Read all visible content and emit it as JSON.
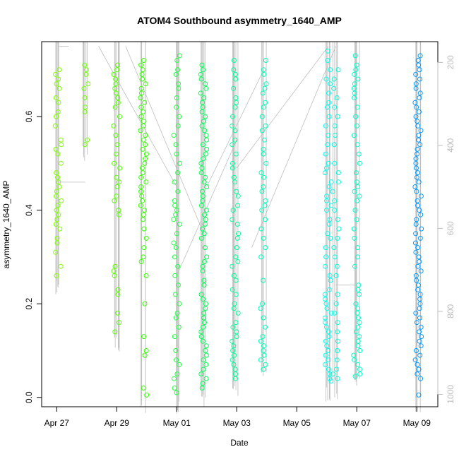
{
  "chart_data": {
    "type": "scatter",
    "title": "ATOM4 Southbound asymmetry_1640_AMP",
    "xlabel": "Date",
    "ylabel": "asymmetry_1640_AMP",
    "x_ticks": [
      "Apr 27",
      "Apr 29",
      "May 01",
      "May 03",
      "May 05",
      "May 07",
      "May 09"
    ],
    "y_ticks": [
      "0.0",
      "0.2",
      "0.4",
      "0.6"
    ],
    "y_ticks_right": [
      "200",
      "400",
      "600",
      "800",
      "1000"
    ],
    "xlim_days": [
      -0.5,
      12.7
    ],
    "ylim": [
      -0.02,
      0.76
    ],
    "ylim_right": [
      1030,
      150
    ],
    "grid": false,
    "right_axis_color": "#bdbdbd",
    "line_color": "#bebebe",
    "series": [
      {
        "day": 0.05,
        "color": "#7fff00",
        "values": [
          0.7,
          0.69,
          0.68,
          0.67,
          0.66,
          0.64,
          0.63,
          0.61,
          0.6,
          0.58,
          0.55,
          0.54,
          0.53,
          0.52,
          0.5,
          0.48,
          0.47,
          0.46,
          0.45,
          0.44,
          0.43,
          0.42,
          0.41,
          0.4,
          0.39,
          0.38,
          0.37,
          0.36,
          0.34,
          0.33,
          0.31,
          0.28,
          0.26
        ]
      },
      {
        "day": 0.95,
        "color": "#6fff00",
        "values": [
          0.71,
          0.7,
          0.69,
          0.67,
          0.66,
          0.64,
          0.62,
          0.61,
          0.55,
          0.54
        ]
      },
      {
        "day": 2.0,
        "color": "#55ff00",
        "values": [
          0.71,
          0.7,
          0.69,
          0.68,
          0.67,
          0.66,
          0.65,
          0.64,
          0.63,
          0.62,
          0.6,
          0.58,
          0.56,
          0.54,
          0.52,
          0.5,
          0.49,
          0.47,
          0.46,
          0.45,
          0.43,
          0.42,
          0.4,
          0.39,
          0.28,
          0.27,
          0.26,
          0.23,
          0.22,
          0.18,
          0.16,
          0.14
        ]
      },
      {
        "day": 2.9,
        "color": "#33ff00",
        "values": [
          0.72,
          0.71,
          0.7,
          0.69,
          0.68,
          0.67,
          0.66,
          0.65,
          0.64,
          0.63,
          0.62,
          0.61,
          0.6,
          0.59,
          0.58,
          0.57,
          0.56,
          0.55,
          0.54,
          0.53,
          0.52,
          0.51,
          0.5,
          0.49,
          0.48,
          0.47,
          0.46,
          0.45,
          0.44,
          0.43,
          0.42,
          0.41,
          0.4,
          0.39,
          0.38,
          0.36,
          0.34,
          0.32,
          0.3,
          0.29,
          0.26,
          0.2,
          0.13,
          0.1,
          0.09,
          0.02,
          0.005
        ]
      },
      {
        "day": 4.0,
        "color": "#22ff44",
        "values": [
          0.73,
          0.72,
          0.7,
          0.69,
          0.67,
          0.66,
          0.64,
          0.62,
          0.6,
          0.58,
          0.56,
          0.54,
          0.52,
          0.5,
          0.48,
          0.46,
          0.44,
          0.42,
          0.41,
          0.4,
          0.39,
          0.38,
          0.37,
          0.35,
          0.33,
          0.32,
          0.3,
          0.28,
          0.26,
          0.24,
          0.22,
          0.2,
          0.18,
          0.17,
          0.15,
          0.13,
          0.1,
          0.08,
          0.07,
          0.05,
          0.04,
          0.02,
          0.01
        ]
      },
      {
        "day": 4.9,
        "color": "#00ff55",
        "values": [
          0.71,
          0.7,
          0.69,
          0.68,
          0.67,
          0.66,
          0.65,
          0.64,
          0.63,
          0.62,
          0.61,
          0.6,
          0.59,
          0.58,
          0.57,
          0.56,
          0.55,
          0.54,
          0.53,
          0.52,
          0.51,
          0.5,
          0.49,
          0.48,
          0.47,
          0.46,
          0.45,
          0.44,
          0.43,
          0.42,
          0.41,
          0.4,
          0.39,
          0.38,
          0.37,
          0.36,
          0.35,
          0.34,
          0.32,
          0.3,
          0.29,
          0.28,
          0.27,
          0.25,
          0.24,
          0.22,
          0.21,
          0.2,
          0.19,
          0.18,
          0.17,
          0.16,
          0.15,
          0.14,
          0.13,
          0.12,
          0.11,
          0.1,
          0.09,
          0.08,
          0.07,
          0.06,
          0.05,
          0.04,
          0.03,
          0.02
        ]
      },
      {
        "day": 5.95,
        "color": "#00ff99",
        "values": [
          0.72,
          0.7,
          0.69,
          0.68,
          0.66,
          0.64,
          0.63,
          0.62,
          0.6,
          0.58,
          0.57,
          0.55,
          0.54,
          0.52,
          0.5,
          0.49,
          0.47,
          0.46,
          0.44,
          0.43,
          0.41,
          0.4,
          0.38,
          0.37,
          0.35,
          0.34,
          0.32,
          0.3,
          0.29,
          0.28,
          0.26,
          0.25,
          0.23,
          0.22,
          0.2,
          0.19,
          0.18,
          0.16,
          0.15,
          0.14,
          0.13,
          0.12,
          0.11,
          0.1,
          0.09,
          0.08,
          0.07,
          0.06,
          0.05,
          0.04
        ]
      },
      {
        "day": 6.9,
        "color": "#00ffbb",
        "values": [
          0.72,
          0.7,
          0.69,
          0.67,
          0.66,
          0.65,
          0.63,
          0.62,
          0.6,
          0.58,
          0.57,
          0.55,
          0.53,
          0.52,
          0.5,
          0.48,
          0.47,
          0.45,
          0.44,
          0.42,
          0.41,
          0.4,
          0.38,
          0.36,
          0.34,
          0.32,
          0.3,
          0.25,
          0.2,
          0.19,
          0.17,
          0.15,
          0.13,
          0.12,
          0.11,
          0.1,
          0.09,
          0.08,
          0.07,
          0.06
        ]
      },
      {
        "day": 9.05,
        "color": "#00ffee",
        "values": [
          0.74,
          0.72,
          0.7,
          0.68,
          0.67,
          0.65,
          0.63,
          0.62,
          0.6,
          0.58,
          0.56,
          0.54,
          0.52,
          0.5,
          0.49,
          0.48,
          0.46,
          0.45,
          0.43,
          0.42,
          0.41,
          0.4,
          0.38,
          0.37,
          0.35,
          0.34,
          0.32,
          0.3,
          0.28,
          0.26,
          0.25,
          0.23,
          0.22,
          0.21,
          0.2,
          0.19,
          0.18,
          0.17,
          0.16,
          0.15,
          0.14,
          0.13,
          0.12,
          0.11,
          0.1,
          0.09,
          0.08,
          0.07,
          0.06,
          0.05,
          0.04,
          0.035
        ]
      },
      {
        "day": 9.3,
        "color": "#00ffdd",
        "values": [
          0.7,
          0.68,
          0.66,
          0.64,
          0.62,
          0.6,
          0.58,
          0.56,
          0.54,
          0.5,
          0.48,
          0.46,
          0.44,
          0.42,
          0.4,
          0.38,
          0.36,
          0.34,
          0.32,
          0.3,
          0.28,
          0.26,
          0.22,
          0.2,
          0.18,
          0.16,
          0.14,
          0.12,
          0.1,
          0.08,
          0.06,
          0.05,
          0.04
        ]
      },
      {
        "day": 10.0,
        "color": "#00ffcc",
        "values": [
          0.73,
          0.71,
          0.7,
          0.69,
          0.68,
          0.67,
          0.66,
          0.65,
          0.64,
          0.62,
          0.6,
          0.58,
          0.56,
          0.54,
          0.52,
          0.5,
          0.48,
          0.46,
          0.45,
          0.44,
          0.43,
          0.42,
          0.4,
          0.38,
          0.36,
          0.34,
          0.32,
          0.3,
          0.28,
          0.24,
          0.23,
          0.22,
          0.2,
          0.19,
          0.18,
          0.17,
          0.16,
          0.15,
          0.14,
          0.13,
          0.12,
          0.11,
          0.1,
          0.09,
          0.08,
          0.07,
          0.06,
          0.05,
          0.045
        ]
      },
      {
        "day": 12.05,
        "color": "#0099ff",
        "values": [
          0.73,
          0.72,
          0.71,
          0.7,
          0.69,
          0.68,
          0.67,
          0.66,
          0.65,
          0.64,
          0.63,
          0.62,
          0.61,
          0.6,
          0.59,
          0.58,
          0.57,
          0.56,
          0.55,
          0.54,
          0.53,
          0.52,
          0.51,
          0.5,
          0.49,
          0.48,
          0.47,
          0.46,
          0.45,
          0.44,
          0.43,
          0.42,
          0.41,
          0.4,
          0.39,
          0.38,
          0.37,
          0.36,
          0.35,
          0.34,
          0.33,
          0.32,
          0.31,
          0.3,
          0.29,
          0.28,
          0.27,
          0.26,
          0.25,
          0.24,
          0.23,
          0.22,
          0.21,
          0.2,
          0.19,
          0.18,
          0.17,
          0.16,
          0.15,
          0.14,
          0.13,
          0.12,
          0.11,
          0.1,
          0.09,
          0.08,
          0.07,
          0.06,
          0.05,
          0.04,
          0.005
        ]
      }
    ]
  }
}
